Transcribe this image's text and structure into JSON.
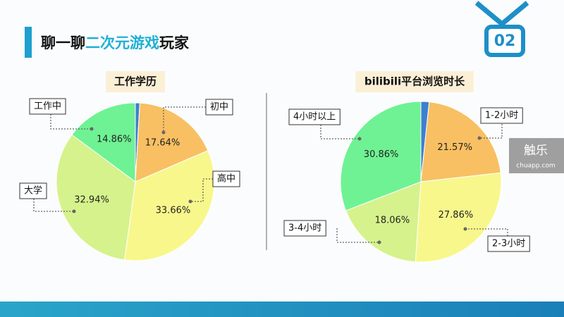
{
  "header": {
    "title_parts": [
      "聊一聊",
      "二次元游戏",
      "玩家"
    ],
    "badge": "02"
  },
  "watermark": {
    "name": "触乐",
    "site": "chuapp.com"
  },
  "chart_data": [
    {
      "type": "pie",
      "title": "工作学历",
      "categories": [
        null,
        "初中",
        "高中",
        "大学",
        "工作中"
      ],
      "values": [
        0.9,
        17.64,
        33.66,
        32.94,
        14.86
      ],
      "value_labels": [
        null,
        "17.64%",
        "33.66%",
        "32.94%",
        "14.86%"
      ],
      "colors": [
        "#3d7fd0",
        "#f8c063",
        "#f7f78c",
        "#d6f28c",
        "#6ff293"
      ]
    },
    {
      "type": "pie",
      "title": "bilibili平台浏览时长",
      "categories": [
        null,
        "1-2小时",
        "2-3小时",
        "3-4小时",
        "4小时以上"
      ],
      "values": [
        1.65,
        21.57,
        27.86,
        18.06,
        30.86
      ],
      "value_labels": [
        null,
        "21.57%",
        "27.86%",
        "18.06%",
        "30.86%"
      ],
      "colors": [
        "#3d7fd0",
        "#f8c063",
        "#f7f78c",
        "#d6f28c",
        "#6ff293"
      ]
    }
  ]
}
